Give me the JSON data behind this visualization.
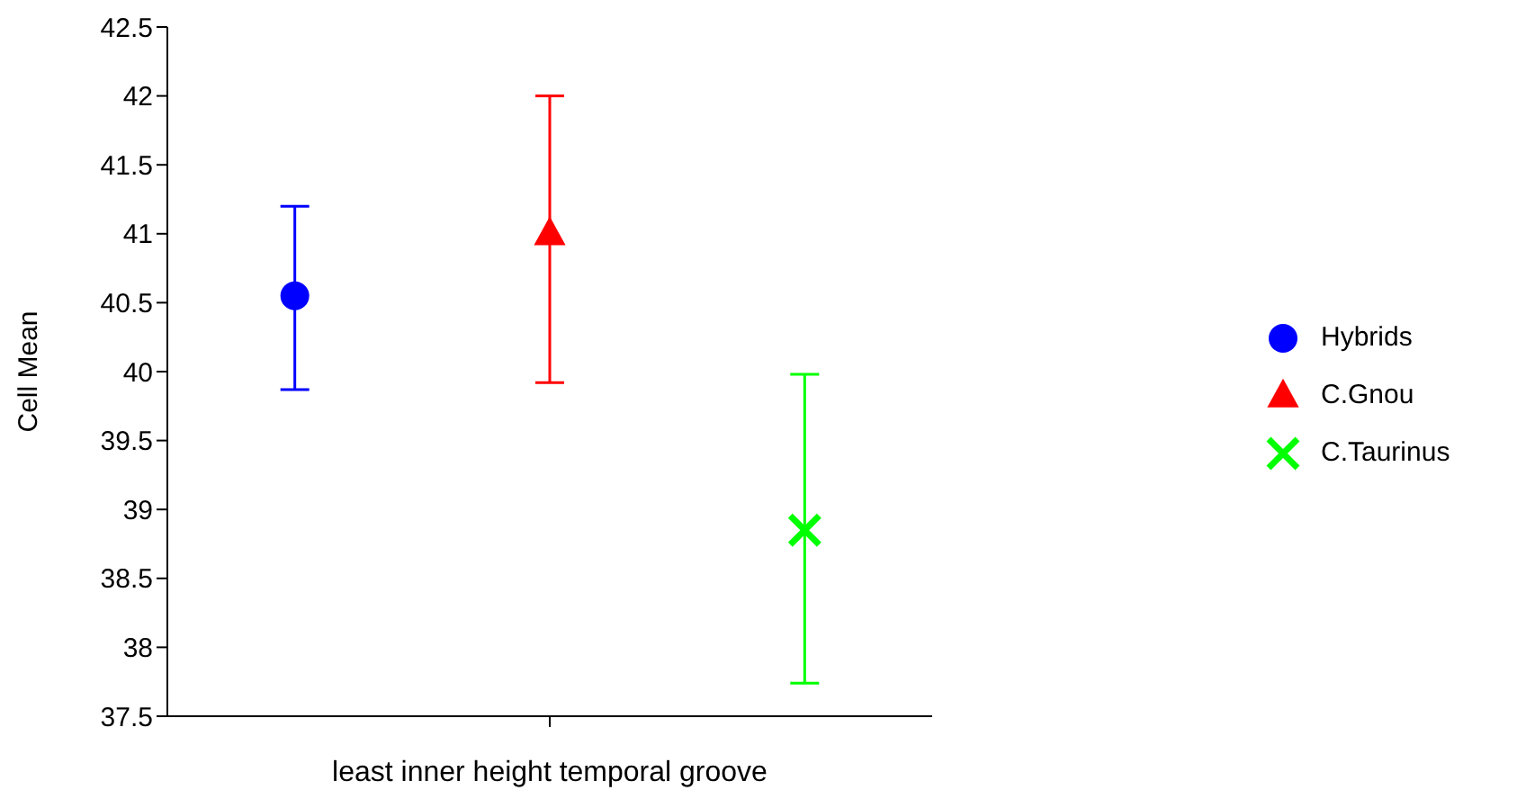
{
  "chart_data": {
    "type": "scatter",
    "xlabel": "least inner height temporal groove",
    "ylabel": "Cell Mean",
    "categories": [
      null,
      null,
      null
    ],
    "series": [
      {
        "name": "Hybrids",
        "color": "#0000ff",
        "marker": "circle",
        "values": [
          40.55,
          null,
          null
        ],
        "errors": [
          [
            39.87,
            41.2
          ],
          null,
          null
        ]
      },
      {
        "name": "C.Gnou",
        "color": "#ff0000",
        "marker": "triangle",
        "values": [
          null,
          41.0,
          null
        ],
        "errors": [
          null,
          [
            39.92,
            42.0
          ],
          null
        ]
      },
      {
        "name": "C.Taurinus",
        "color": "#00ff00",
        "marker": "cross",
        "values": [
          null,
          null,
          38.85
        ],
        "errors": [
          null,
          null,
          [
            37.74,
            39.98
          ]
        ]
      }
    ],
    "ylim": [
      37.5,
      42.5
    ],
    "yticks": [
      37.5,
      38,
      38.5,
      39,
      39.5,
      40,
      40.5,
      41,
      41.5,
      42,
      42.5
    ],
    "grid": false,
    "legend": "right"
  }
}
